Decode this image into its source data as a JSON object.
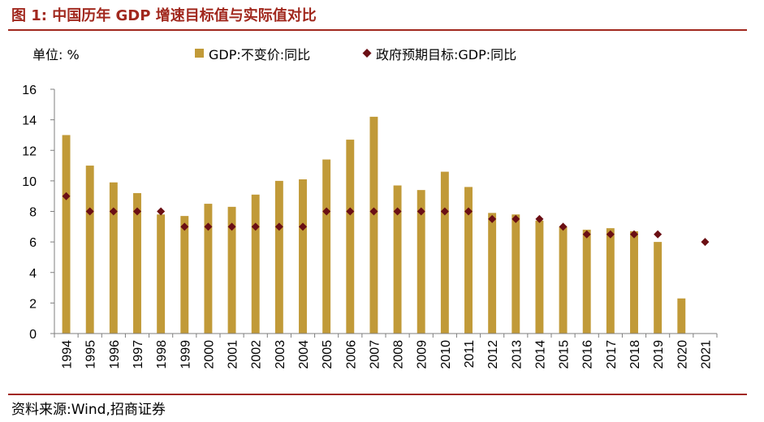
{
  "header": {
    "title": "图 1: 中国历年 GDP 增速目标值与实际值对比"
  },
  "footer": {
    "source": "资料来源:Wind,招商证券"
  },
  "chart_data": {
    "type": "bar",
    "title": "中国历年 GDP 增速目标值与实际值对比",
    "unit_label": "单位: %",
    "xlabel": "",
    "ylabel": "",
    "ylim": [
      0,
      16
    ],
    "yticks": [
      0,
      2,
      4,
      6,
      8,
      10,
      12,
      14,
      16
    ],
    "categories": [
      "1994",
      "1995",
      "1996",
      "1997",
      "1998",
      "1999",
      "2000",
      "2001",
      "2002",
      "2003",
      "2004",
      "2005",
      "2006",
      "2007",
      "2008",
      "2009",
      "2010",
      "2011",
      "2012",
      "2013",
      "2014",
      "2015",
      "2016",
      "2017",
      "2018",
      "2019",
      "2020",
      "2021"
    ],
    "series": [
      {
        "name": "GDP:不变价:同比",
        "kind": "bar",
        "color": "#c19a38",
        "values": [
          13.0,
          11.0,
          9.9,
          9.2,
          7.8,
          7.7,
          8.5,
          8.3,
          9.1,
          10.0,
          10.1,
          11.4,
          12.7,
          14.2,
          9.7,
          9.4,
          10.6,
          9.6,
          7.9,
          7.8,
          7.4,
          7.0,
          6.8,
          6.9,
          6.7,
          6.0,
          2.3,
          null
        ]
      },
      {
        "name": "政府预期目标:GDP:同比",
        "kind": "marker",
        "color": "#6b0f14",
        "values": [
          9.0,
          8.0,
          8.0,
          8.0,
          8.0,
          7.0,
          7.0,
          7.0,
          7.0,
          7.0,
          7.0,
          8.0,
          8.0,
          8.0,
          8.0,
          8.0,
          8.0,
          8.0,
          7.5,
          7.5,
          7.5,
          7.0,
          6.5,
          6.5,
          6.5,
          6.5,
          null,
          6.0
        ]
      }
    ],
    "legend_position": "top"
  }
}
